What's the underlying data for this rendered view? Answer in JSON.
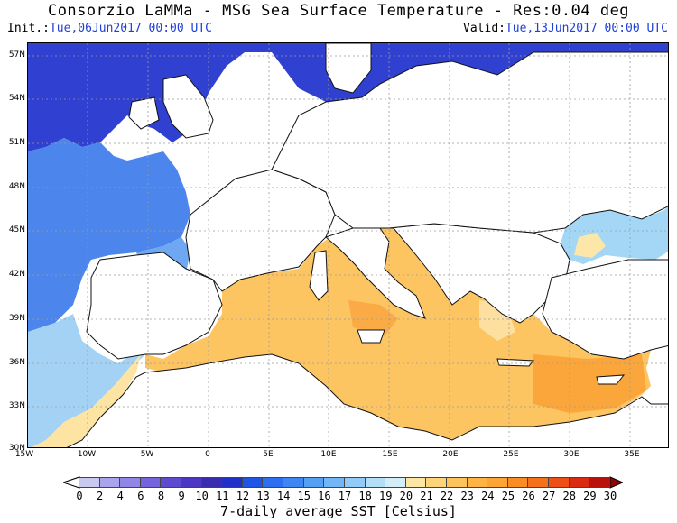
{
  "header": {
    "title": "Consorzio LaMMa -  MSG Sea Surface Temperature - Res:0.04 deg",
    "init_key": "Init.:",
    "init_value": "Tue,06Jun2017 00:00 UTC",
    "valid_key": "Valid:",
    "valid_value": "Tue,13Jun2017 00:00 UTC"
  },
  "axes": {
    "lat_labels": [
      "57N",
      "54N",
      "51N",
      "48N",
      "45N",
      "42N",
      "39N",
      "36N",
      "33N",
      "30N"
    ],
    "lon_labels": [
      "15W",
      "10W",
      "5W",
      "0",
      "5E",
      "10E",
      "15E",
      "20E",
      "25E",
      "30E",
      "35E"
    ]
  },
  "colorbar": {
    "ticks": [
      "0",
      "2",
      "4",
      "6",
      "8",
      "9",
      "10",
      "11",
      "12",
      "13",
      "14",
      "15",
      "16",
      "17",
      "18",
      "19",
      "20",
      "21",
      "22",
      "23",
      "24",
      "25",
      "26",
      "27",
      "28",
      "29",
      "30"
    ],
    "colors": [
      "#c8c8f0",
      "#a9a4ec",
      "#8f86e6",
      "#7465dd",
      "#5e4ad1",
      "#4b37c3",
      "#3a2cae",
      "#2031c9",
      "#1f55e6",
      "#2e6ef0",
      "#3f86f2",
      "#55a0f5",
      "#72b6f7",
      "#92cbf7",
      "#b3def7",
      "#d2eef8",
      "#fbe6a3",
      "#fdd47a",
      "#fdc35c",
      "#fdb443",
      "#fca434",
      "#fa8d21",
      "#f4711a",
      "#ed4f14",
      "#da2a10",
      "#b8110c",
      "#8a0606"
    ],
    "caption": "7-daily average SST [Celsius]"
  },
  "map": {
    "region": "Europe and Mediterranean",
    "lat_range": [
      30,
      58
    ],
    "lon_range": [
      -15,
      38
    ],
    "grid": "dashed gray",
    "sea_colors": {
      "north_sea": "#2e3bd0",
      "atlantic_north": "#3d50dc",
      "atlantic_mid": "#4d86ee",
      "atlantic_south": "#9fd0f4",
      "black_sea": "#9ed3f5",
      "mediterranean": "#fdc562",
      "med_warm": "#fba63b",
      "coast_warm": "#fde7a8"
    },
    "land_color": "#ffffff"
  }
}
